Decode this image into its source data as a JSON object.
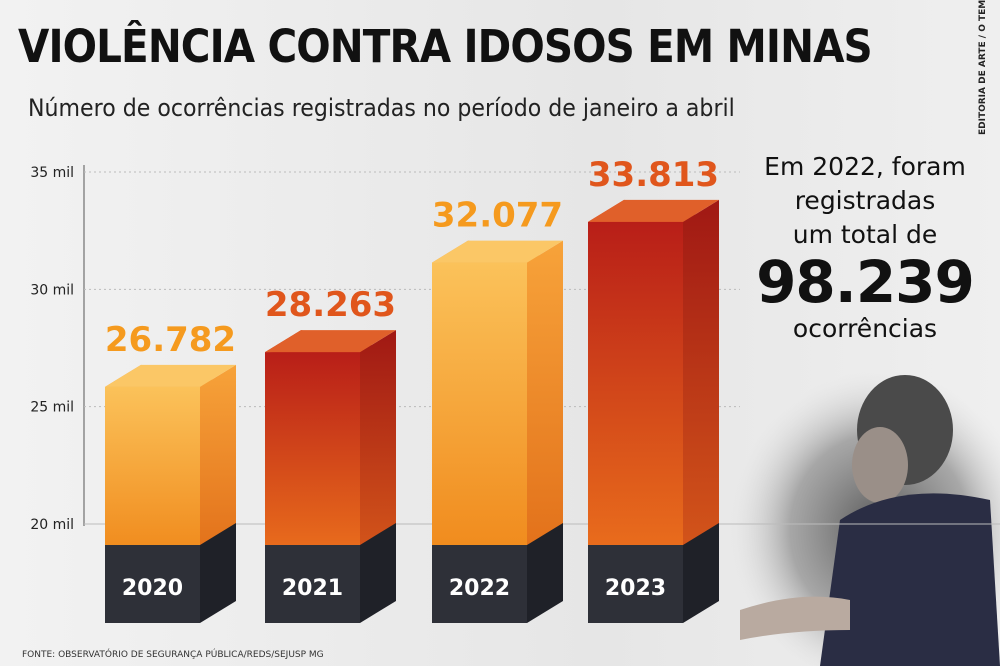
{
  "header": {
    "title": "VIOLÊNCIA CONTRA IDOSOS EM MINAS",
    "subtitle": "Número de ocorrências registradas no período de janeiro a abril",
    "credit": "EDITORIA DE ARTE / O TEMPO"
  },
  "side": {
    "line1": "Em 2022, foram",
    "line2": "registradas",
    "line3": "um total de",
    "total": "98.239",
    "line4": "ocorrências"
  },
  "source": "FONTE: OBSERVATÓRIO DE SEGURANÇA PÚBLICA/REDS/SEJUSP MG",
  "colors": {
    "light": "#f7a53a",
    "dark": "#c8321a",
    "label_light": "#f59a1e",
    "label_dark": "#e0561c",
    "base": "#2e3038"
  },
  "chart_data": {
    "type": "bar",
    "title": "VIOLÊNCIA CONTRA IDOSOS EM MINAS",
    "categories": [
      "2020",
      "2021",
      "2022",
      "2023"
    ],
    "values": [
      26782,
      28263,
      32077,
      33813
    ],
    "value_labels": [
      "26.782",
      "28.263",
      "32.077",
      "33.813"
    ],
    "ylim": [
      20000,
      35000
    ],
    "yticks": [
      20000,
      25000,
      30000,
      35000
    ],
    "ytick_labels": [
      "20 mil",
      "25 mil",
      "30 mil",
      "35 mil"
    ],
    "xlabel": "",
    "ylabel": "",
    "grid": true,
    "legend": "none"
  }
}
